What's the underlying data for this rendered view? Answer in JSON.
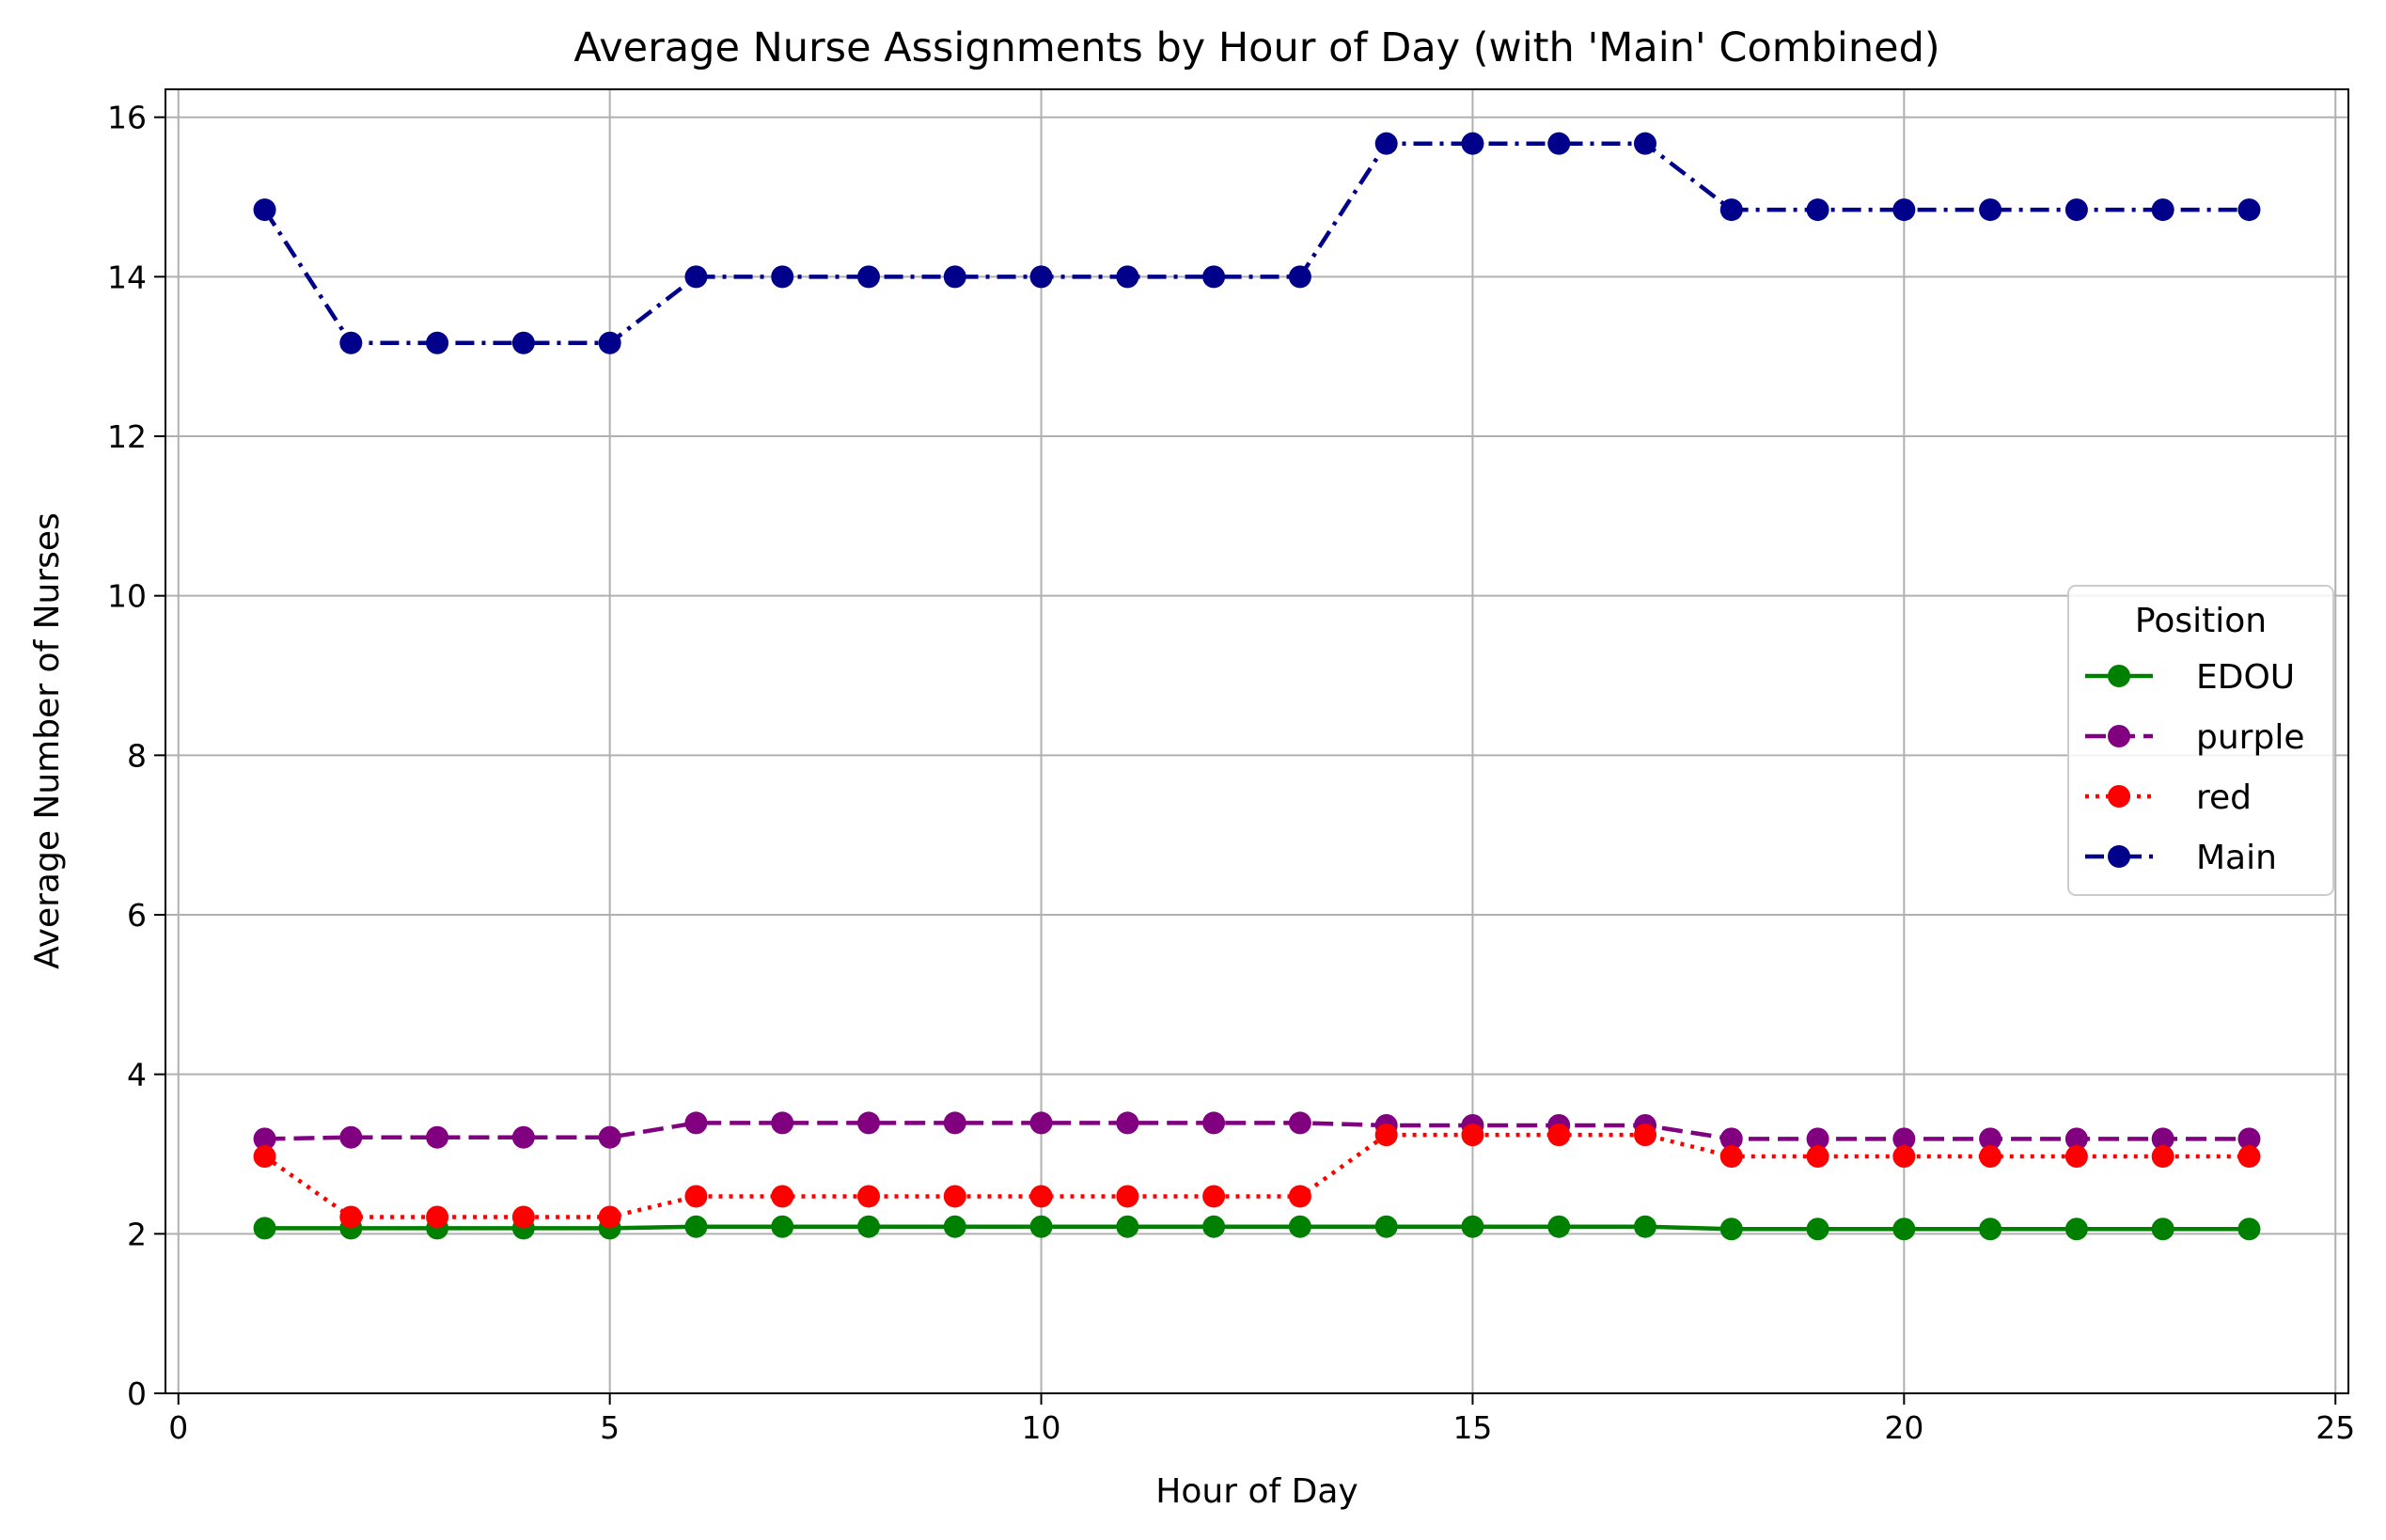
{
  "chart_data": {
    "type": "line",
    "title": "Average Nurse Assignments by Hour of Day (with 'Main' Combined)",
    "xlabel": "Hour of Day",
    "ylabel": "Average Number of Nurses",
    "xlim": [
      -0.15,
      25.15
    ],
    "ylim": [
      0,
      16.35
    ],
    "xticks": [
      0,
      5,
      10,
      15,
      20,
      25
    ],
    "yticks": [
      0,
      2,
      4,
      6,
      8,
      10,
      12,
      14,
      16
    ],
    "grid": true,
    "legend": {
      "title": "Position",
      "placement": "center-right"
    },
    "x": [
      1,
      2,
      3,
      4,
      5,
      6,
      7,
      8,
      9,
      10,
      11,
      12,
      13,
      14,
      15,
      16,
      17,
      18,
      19,
      20,
      21,
      22,
      23,
      24
    ],
    "series": [
      {
        "name": "EDOU",
        "color": "#008000",
        "dash": "solid",
        "values": [
          2.07,
          2.07,
          2.07,
          2.07,
          2.07,
          2.09,
          2.09,
          2.09,
          2.09,
          2.09,
          2.09,
          2.09,
          2.09,
          2.09,
          2.09,
          2.09,
          2.09,
          2.06,
          2.06,
          2.06,
          2.06,
          2.06,
          2.06,
          2.06
        ]
      },
      {
        "name": "purple",
        "color": "#800080",
        "dash": "dashed",
        "values": [
          3.19,
          3.21,
          3.21,
          3.21,
          3.21,
          3.39,
          3.39,
          3.39,
          3.39,
          3.39,
          3.39,
          3.39,
          3.39,
          3.36,
          3.36,
          3.36,
          3.36,
          3.19,
          3.19,
          3.19,
          3.19,
          3.19,
          3.19,
          3.19
        ]
      },
      {
        "name": "red",
        "color": "#ff0000",
        "dash": "dotted",
        "values": [
          2.97,
          2.21,
          2.21,
          2.21,
          2.21,
          2.47,
          2.47,
          2.47,
          2.47,
          2.47,
          2.47,
          2.47,
          2.47,
          3.24,
          3.24,
          3.24,
          3.24,
          2.97,
          2.97,
          2.97,
          2.97,
          2.97,
          2.97,
          2.97
        ]
      },
      {
        "name": "Main",
        "color": "#00008b",
        "dash": "dashdot",
        "values": [
          14.84,
          13.17,
          13.17,
          13.17,
          13.17,
          14.0,
          14.0,
          14.0,
          14.0,
          14.0,
          14.0,
          14.0,
          14.0,
          15.67,
          15.67,
          15.67,
          15.67,
          14.84,
          14.84,
          14.84,
          14.84,
          14.84,
          14.84,
          14.84
        ]
      }
    ]
  }
}
